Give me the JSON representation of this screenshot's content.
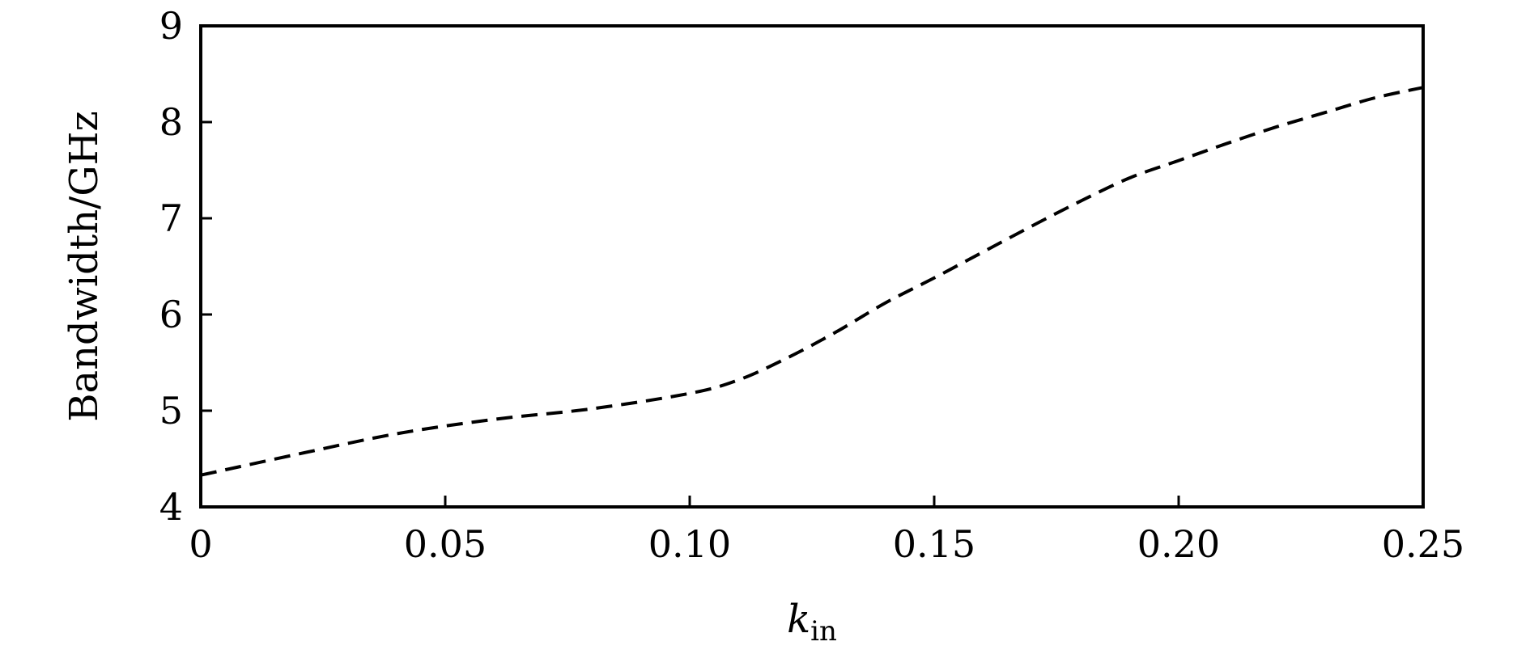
{
  "chart_data": {
    "type": "line",
    "xlabel": "k",
    "xlabel_subscript": "in",
    "ylabel": "Bandwidth/GHz",
    "xlim": [
      0,
      0.25
    ],
    "ylim": [
      4,
      9
    ],
    "x_ticks": [
      0,
      0.05,
      0.1,
      0.15,
      0.2,
      0.25
    ],
    "x_tick_labels": [
      "0",
      "0.05",
      "0.10",
      "0.15",
      "0.20",
      "0.25"
    ],
    "y_ticks": [
      4,
      5,
      6,
      7,
      8,
      9
    ],
    "y_tick_labels": [
      "4",
      "5",
      "6",
      "7",
      "8",
      "9"
    ],
    "grid": false,
    "series": [
      {
        "style": "dashed",
        "color": "#000000",
        "x": [
          0,
          0.02,
          0.04,
          0.06,
          0.08,
          0.1,
          0.11,
          0.12,
          0.13,
          0.14,
          0.15,
          0.16,
          0.17,
          0.18,
          0.19,
          0.2,
          0.21,
          0.22,
          0.23,
          0.24,
          0.25
        ],
        "y": [
          4.33,
          4.55,
          4.76,
          4.91,
          5.02,
          5.18,
          5.32,
          5.55,
          5.82,
          6.12,
          6.38,
          6.65,
          6.92,
          7.18,
          7.42,
          7.6,
          7.78,
          7.95,
          8.1,
          8.25,
          8.36
        ]
      }
    ]
  }
}
